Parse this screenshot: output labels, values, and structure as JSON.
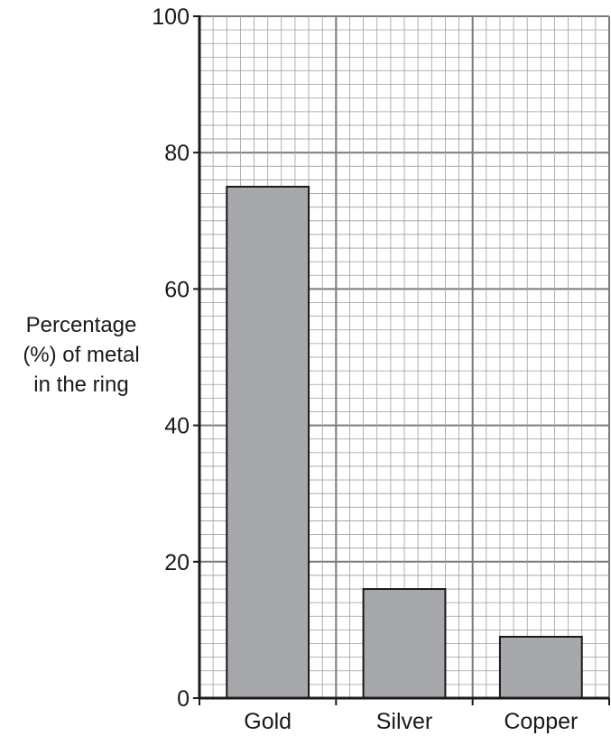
{
  "chart_data": {
    "type": "bar",
    "categories": [
      "Gold",
      "Silver",
      "Copper"
    ],
    "values": [
      75,
      16,
      9
    ],
    "title": "",
    "xlabel": "",
    "ylabel_lines": [
      "Percentage",
      "(%) of metal",
      "in the ring"
    ],
    "ylim": [
      0,
      100
    ],
    "yticks": [
      0,
      20,
      40,
      60,
      80,
      100
    ],
    "grid": true,
    "legend": "none",
    "colors": {
      "bar_fill": "#a7a8ab",
      "bar_stroke": "#1a1a1a",
      "minor_grid": "#9d9d9d",
      "major_grid": "#7a7a7a",
      "axis": "#1a1a1a"
    }
  }
}
